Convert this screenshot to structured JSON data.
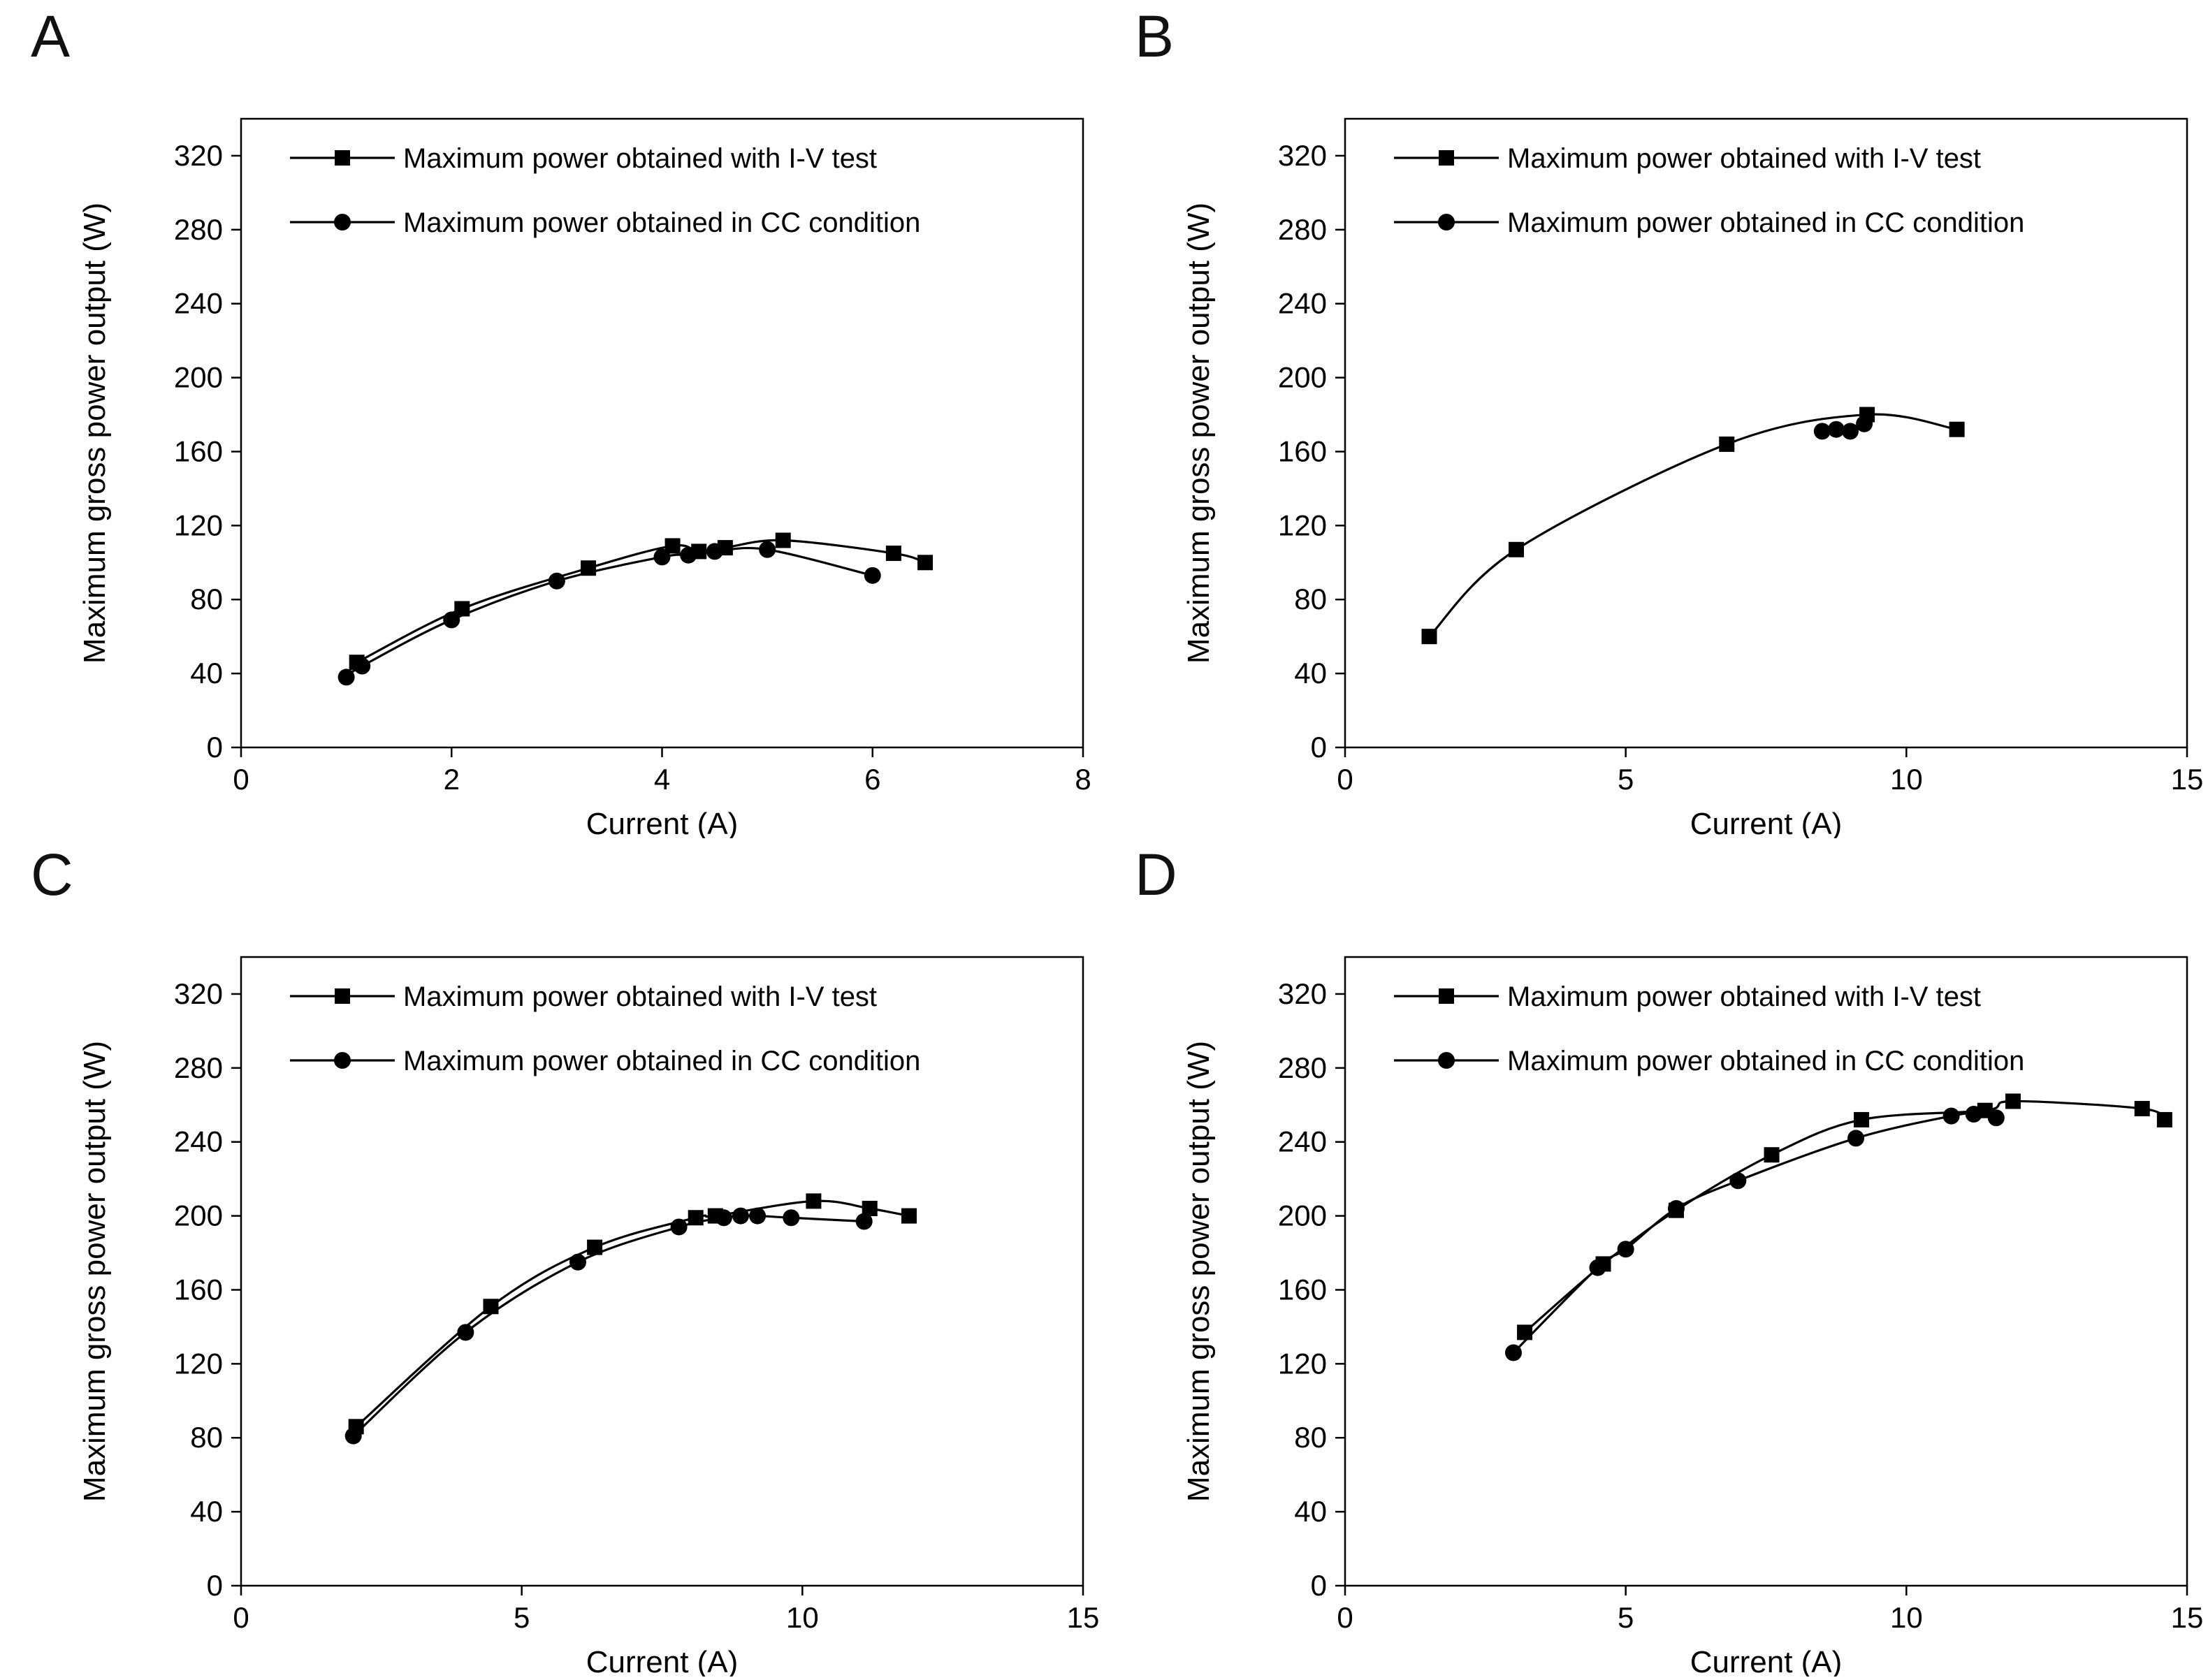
{
  "figure": {
    "background": "#ffffff",
    "line_color": "#000000"
  },
  "chart_data": [
    {
      "panel": "A",
      "type": "line",
      "title": "",
      "xlabel": "Current (A)",
      "ylabel": "Maximum gross power output (W)",
      "xlim": [
        0,
        8
      ],
      "ylim": [
        0,
        340
      ],
      "xticks": [
        0,
        2,
        4,
        6,
        8
      ],
      "yticks": [
        0,
        40,
        80,
        120,
        160,
        200,
        240,
        280,
        320
      ],
      "grid": false,
      "legend_position": "top-left-inside",
      "series": [
        {
          "name": "Maximum power obtained with I-V test",
          "marker": "square",
          "color": "#000000",
          "points": [
            [
              1.1,
              46
            ],
            [
              2.1,
              75
            ],
            [
              3.3,
              97
            ],
            [
              4.1,
              109
            ],
            [
              4.35,
              106
            ],
            [
              4.6,
              108
            ],
            [
              5.15,
              112
            ],
            [
              6.2,
              105
            ],
            [
              6.5,
              100
            ]
          ]
        },
        {
          "name": "Maximum power obtained in CC condition",
          "marker": "circle",
          "color": "#000000",
          "points": [
            [
              1.0,
              38
            ],
            [
              1.15,
              44
            ],
            [
              2.0,
              69
            ],
            [
              3.0,
              90
            ],
            [
              4.0,
              103
            ],
            [
              4.25,
              104
            ],
            [
              4.5,
              106
            ],
            [
              5.0,
              107
            ],
            [
              6.0,
              93
            ]
          ]
        }
      ]
    },
    {
      "panel": "B",
      "type": "line",
      "title": "",
      "xlabel": "Current (A)",
      "ylabel": "Maximum gross power output (W)",
      "xlim": [
        0,
        15
      ],
      "ylim": [
        0,
        340
      ],
      "xticks": [
        0,
        5,
        10,
        15
      ],
      "yticks": [
        0,
        40,
        80,
        120,
        160,
        200,
        240,
        280,
        320
      ],
      "grid": false,
      "legend_position": "top-left-inside",
      "series": [
        {
          "name": "Maximum power obtained with I-V test",
          "marker": "square",
          "color": "#000000",
          "points": [
            [
              1.5,
              60
            ],
            [
              3.05,
              107
            ],
            [
              6.8,
              164
            ],
            [
              9.3,
              180
            ],
            [
              10.9,
              172
            ]
          ]
        },
        {
          "name": "Maximum power obtained in CC condition",
          "marker": "circle",
          "color": "#000000",
          "points": [
            [
              8.5,
              171
            ],
            [
              8.75,
              172
            ],
            [
              9.0,
              171
            ],
            [
              9.25,
              175
            ]
          ]
        }
      ]
    },
    {
      "panel": "C",
      "type": "line",
      "title": "",
      "xlabel": "Current (A)",
      "ylabel": "Maximum gross power output (W)",
      "xlim": [
        0,
        15
      ],
      "ylim": [
        0,
        340
      ],
      "xticks": [
        0,
        5,
        10,
        15
      ],
      "yticks": [
        0,
        40,
        80,
        120,
        160,
        200,
        240,
        280,
        320
      ],
      "grid": false,
      "legend_position": "top-left-inside",
      "series": [
        {
          "name": "Maximum power obtained with I-V test",
          "marker": "square",
          "color": "#000000",
          "points": [
            [
              2.05,
              86
            ],
            [
              4.45,
              151
            ],
            [
              6.3,
              183
            ],
            [
              8.1,
              199
            ],
            [
              8.45,
              200
            ],
            [
              10.2,
              208
            ],
            [
              11.2,
              204
            ],
            [
              11.9,
              200
            ]
          ]
        },
        {
          "name": "Maximum power obtained in CC condition",
          "marker": "circle",
          "color": "#000000",
          "points": [
            [
              2.0,
              81
            ],
            [
              4.0,
              137
            ],
            [
              6.0,
              175
            ],
            [
              7.8,
              194
            ],
            [
              8.6,
              199
            ],
            [
              8.9,
              200
            ],
            [
              9.2,
              200
            ],
            [
              9.8,
              199
            ],
            [
              11.1,
              197
            ]
          ]
        }
      ]
    },
    {
      "panel": "D",
      "type": "line",
      "title": "",
      "xlabel": "Current (A)",
      "ylabel": "Maximum gross power output (W)",
      "xlim": [
        0,
        15
      ],
      "ylim": [
        0,
        340
      ],
      "xticks": [
        0,
        5,
        10,
        15
      ],
      "yticks": [
        0,
        40,
        80,
        120,
        160,
        200,
        240,
        280,
        320
      ],
      "grid": false,
      "legend_position": "top-left-inside",
      "series": [
        {
          "name": "Maximum power obtained with I-V test",
          "marker": "square",
          "color": "#000000",
          "points": [
            [
              3.2,
              137
            ],
            [
              4.6,
              174
            ],
            [
              5.9,
              203
            ],
            [
              7.6,
              233
            ],
            [
              9.2,
              252
            ],
            [
              11.4,
              257
            ],
            [
              11.9,
              262
            ],
            [
              14.2,
              258
            ],
            [
              14.6,
              252
            ]
          ]
        },
        {
          "name": "Maximum power obtained in CC condition",
          "marker": "circle",
          "color": "#000000",
          "points": [
            [
              3.0,
              126
            ],
            [
              4.5,
              172
            ],
            [
              5.0,
              182
            ],
            [
              5.9,
              204
            ],
            [
              7.0,
              219
            ],
            [
              9.1,
              242
            ],
            [
              10.8,
              254
            ],
            [
              11.2,
              255
            ],
            [
              11.6,
              253
            ]
          ]
        }
      ]
    }
  ]
}
